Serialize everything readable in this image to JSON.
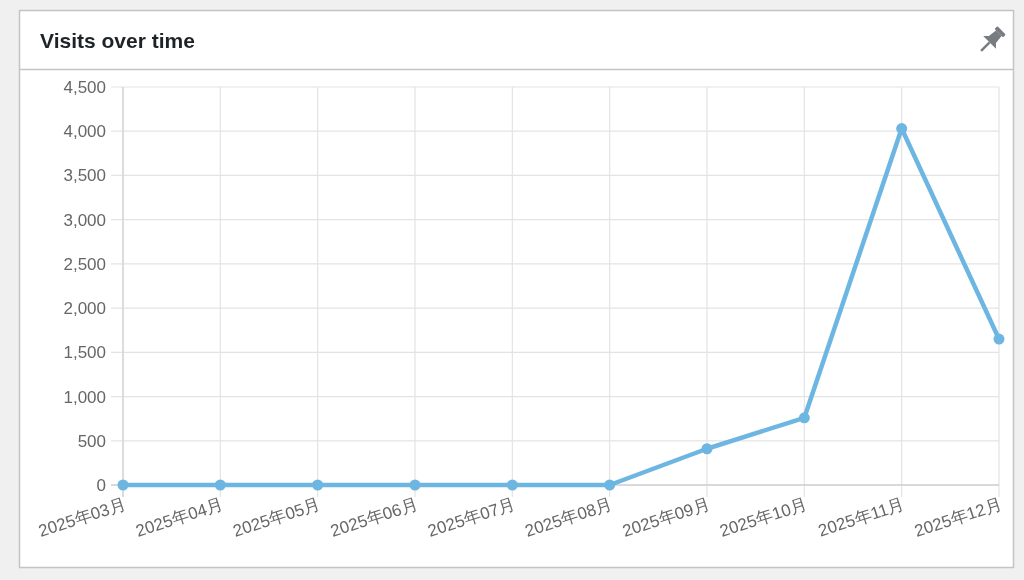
{
  "chart_data": {
    "type": "line",
    "title": "Visits over time",
    "categories": [
      "2025年03月",
      "2025年04月",
      "2025年05月",
      "2025年06月",
      "2025年07月",
      "2025年08月",
      "2025年09月",
      "2025年10月",
      "2025年11月",
      "2025年12月"
    ],
    "series": [
      {
        "color": "#6eb6e2",
        "values": [
          0,
          0,
          0,
          0,
          0,
          0,
          410,
          760,
          4030,
          1650
        ]
      }
    ],
    "ylim": [
      0,
      4500
    ],
    "yticks": [
      0,
      500,
      {
        "value": 1000,
        "label": "1,000"
      },
      {
        "value": 1500,
        "label": "1,500"
      },
      {
        "value": 2000,
        "label": "2,000"
      },
      {
        "value": 2500,
        "label": "2,500"
      },
      {
        "value": 3000,
        "label": "3,000"
      },
      {
        "value": 3500,
        "label": "3,500"
      },
      {
        "value": 4000,
        "label": "4,000"
      },
      {
        "value": 4500,
        "label": "4,500"
      }
    ],
    "grid": true,
    "marker": "circle",
    "line_style": "solid"
  }
}
